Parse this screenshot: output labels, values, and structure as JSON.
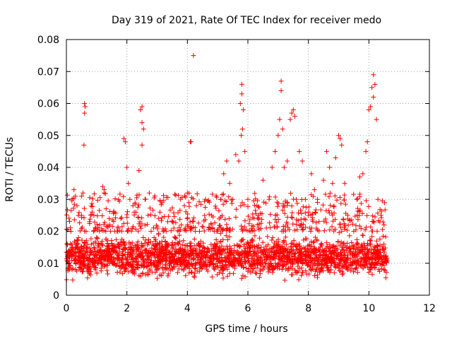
{
  "chart_data": {
    "type": "scatter",
    "title": "Day 319 of 2021, Rate Of TEC Index for receiver medo",
    "xlabel": "GPS time / hours",
    "ylabel": "ROTI / TECUs",
    "xlim": [
      0,
      12
    ],
    "ylim": [
      0,
      0.08
    ],
    "xticks": [
      0,
      2,
      4,
      6,
      8,
      10,
      12
    ],
    "yticks": [
      0,
      0.01,
      0.02,
      0.03,
      0.04,
      0.05,
      0.06,
      0.07,
      0.08
    ],
    "xtick_labels": [
      "0",
      "2",
      "4",
      "6",
      "8",
      "10",
      "12"
    ],
    "ytick_labels": [
      "0",
      "0.01",
      "0.02",
      "0.03",
      "0.04",
      "0.05",
      "0.06",
      "0.07",
      "0.08"
    ],
    "grid": true,
    "marker": "+",
    "color": "#ff0000",
    "series": [
      {
        "name": "ROTI",
        "points": [
          [
            0.05,
            0.012
          ],
          [
            0.1,
            0.008
          ],
          [
            0.15,
            0.02
          ],
          [
            0.2,
            0.015
          ],
          [
            0.25,
            0.033
          ],
          [
            0.3,
            0.031
          ],
          [
            0.35,
            0.028
          ],
          [
            0.4,
            0.018
          ],
          [
            0.45,
            0.01
          ],
          [
            0.5,
            0.025
          ],
          [
            0.55,
            0.032
          ],
          [
            0.6,
            0.06
          ],
          [
            0.62,
            0.059
          ],
          [
            0.6,
            0.057
          ],
          [
            0.58,
            0.047
          ],
          [
            0.65,
            0.02
          ],
          [
            0.7,
            0.015
          ],
          [
            0.8,
            0.025
          ],
          [
            0.9,
            0.02
          ],
          [
            1.0,
            0.018
          ],
          [
            1.1,
            0.022
          ],
          [
            1.2,
            0.034
          ],
          [
            1.25,
            0.033
          ],
          [
            1.3,
            0.02
          ],
          [
            1.4,
            0.012
          ],
          [
            1.5,
            0.016
          ],
          [
            1.6,
            0.01
          ],
          [
            1.7,
            0.02
          ],
          [
            1.8,
            0.024
          ],
          [
            1.9,
            0.049
          ],
          [
            1.95,
            0.048
          ],
          [
            2.0,
            0.04
          ],
          [
            2.05,
            0.035
          ],
          [
            2.1,
            0.03
          ],
          [
            2.2,
            0.028
          ],
          [
            2.3,
            0.026
          ],
          [
            2.4,
            0.039
          ],
          [
            2.45,
            0.058
          ],
          [
            2.5,
            0.059
          ],
          [
            2.5,
            0.054
          ],
          [
            2.55,
            0.052
          ],
          [
            2.5,
            0.047
          ],
          [
            2.6,
            0.03
          ],
          [
            2.7,
            0.025
          ],
          [
            2.8,
            0.02
          ],
          [
            2.9,
            0.018
          ],
          [
            3.0,
            0.015
          ],
          [
            3.2,
            0.02
          ],
          [
            3.4,
            0.012
          ],
          [
            3.6,
            0.018
          ],
          [
            3.8,
            0.022
          ],
          [
            3.9,
            0.028
          ],
          [
            4.0,
            0.032
          ],
          [
            4.05,
            0.029
          ],
          [
            4.1,
            0.048
          ],
          [
            4.12,
            0.048
          ],
          [
            4.2,
            0.075
          ],
          [
            4.3,
            0.028
          ],
          [
            4.4,
            0.02
          ],
          [
            4.6,
            0.03
          ],
          [
            4.8,
            0.025
          ],
          [
            5.0,
            0.02
          ],
          [
            5.1,
            0.03
          ],
          [
            5.2,
            0.038
          ],
          [
            5.3,
            0.042
          ],
          [
            5.4,
            0.035
          ],
          [
            5.5,
            0.03
          ],
          [
            5.6,
            0.044
          ],
          [
            5.7,
            0.042
          ],
          [
            5.75,
            0.06
          ],
          [
            5.8,
            0.066
          ],
          [
            5.8,
            0.063
          ],
          [
            5.85,
            0.058
          ],
          [
            5.82,
            0.052
          ],
          [
            5.78,
            0.05
          ],
          [
            5.9,
            0.045
          ],
          [
            6.0,
            0.03
          ],
          [
            6.1,
            0.02
          ],
          [
            6.3,
            0.028
          ],
          [
            6.5,
            0.036
          ],
          [
            6.7,
            0.03
          ],
          [
            6.8,
            0.04
          ],
          [
            6.9,
            0.045
          ],
          [
            7.0,
            0.05
          ],
          [
            7.05,
            0.055
          ],
          [
            7.1,
            0.067
          ],
          [
            7.1,
            0.064
          ],
          [
            7.15,
            0.052
          ],
          [
            7.2,
            0.04
          ],
          [
            7.3,
            0.042
          ],
          [
            7.4,
            0.055
          ],
          [
            7.45,
            0.057
          ],
          [
            7.5,
            0.058
          ],
          [
            7.55,
            0.056
          ],
          [
            7.6,
            0.03
          ],
          [
            7.7,
            0.045
          ],
          [
            7.8,
            0.042
          ],
          [
            7.9,
            0.03
          ],
          [
            8.0,
            0.025
          ],
          [
            8.1,
            0.038
          ],
          [
            8.2,
            0.033
          ],
          [
            8.3,
            0.03
          ],
          [
            8.5,
            0.036
          ],
          [
            8.6,
            0.045
          ],
          [
            8.7,
            0.04
          ],
          [
            8.8,
            0.035
          ],
          [
            8.9,
            0.043
          ],
          [
            9.0,
            0.05
          ],
          [
            9.05,
            0.049
          ],
          [
            9.1,
            0.047
          ],
          [
            9.2,
            0.035
          ],
          [
            9.3,
            0.025
          ],
          [
            9.5,
            0.02
          ],
          [
            9.6,
            0.03
          ],
          [
            9.7,
            0.037
          ],
          [
            9.8,
            0.038
          ],
          [
            9.9,
            0.045
          ],
          [
            9.95,
            0.048
          ],
          [
            10.0,
            0.058
          ],
          [
            10.05,
            0.059
          ],
          [
            10.1,
            0.065
          ],
          [
            10.15,
            0.069
          ],
          [
            10.2,
            0.066
          ],
          [
            10.15,
            0.062
          ],
          [
            10.25,
            0.055
          ],
          [
            10.3,
            0.03
          ],
          [
            10.4,
            0.025
          ],
          [
            10.5,
            0.022
          ],
          [
            10.55,
            0.012
          ],
          [
            10.5,
            0.008
          ]
        ],
        "noise_band": {
          "x_range": [
            0,
            10.6
          ],
          "y_core": [
            0.004,
            0.02
          ],
          "y_ext": [
            0.02,
            0.032
          ],
          "count": 2200,
          "ext_count": 500
        }
      }
    ]
  }
}
